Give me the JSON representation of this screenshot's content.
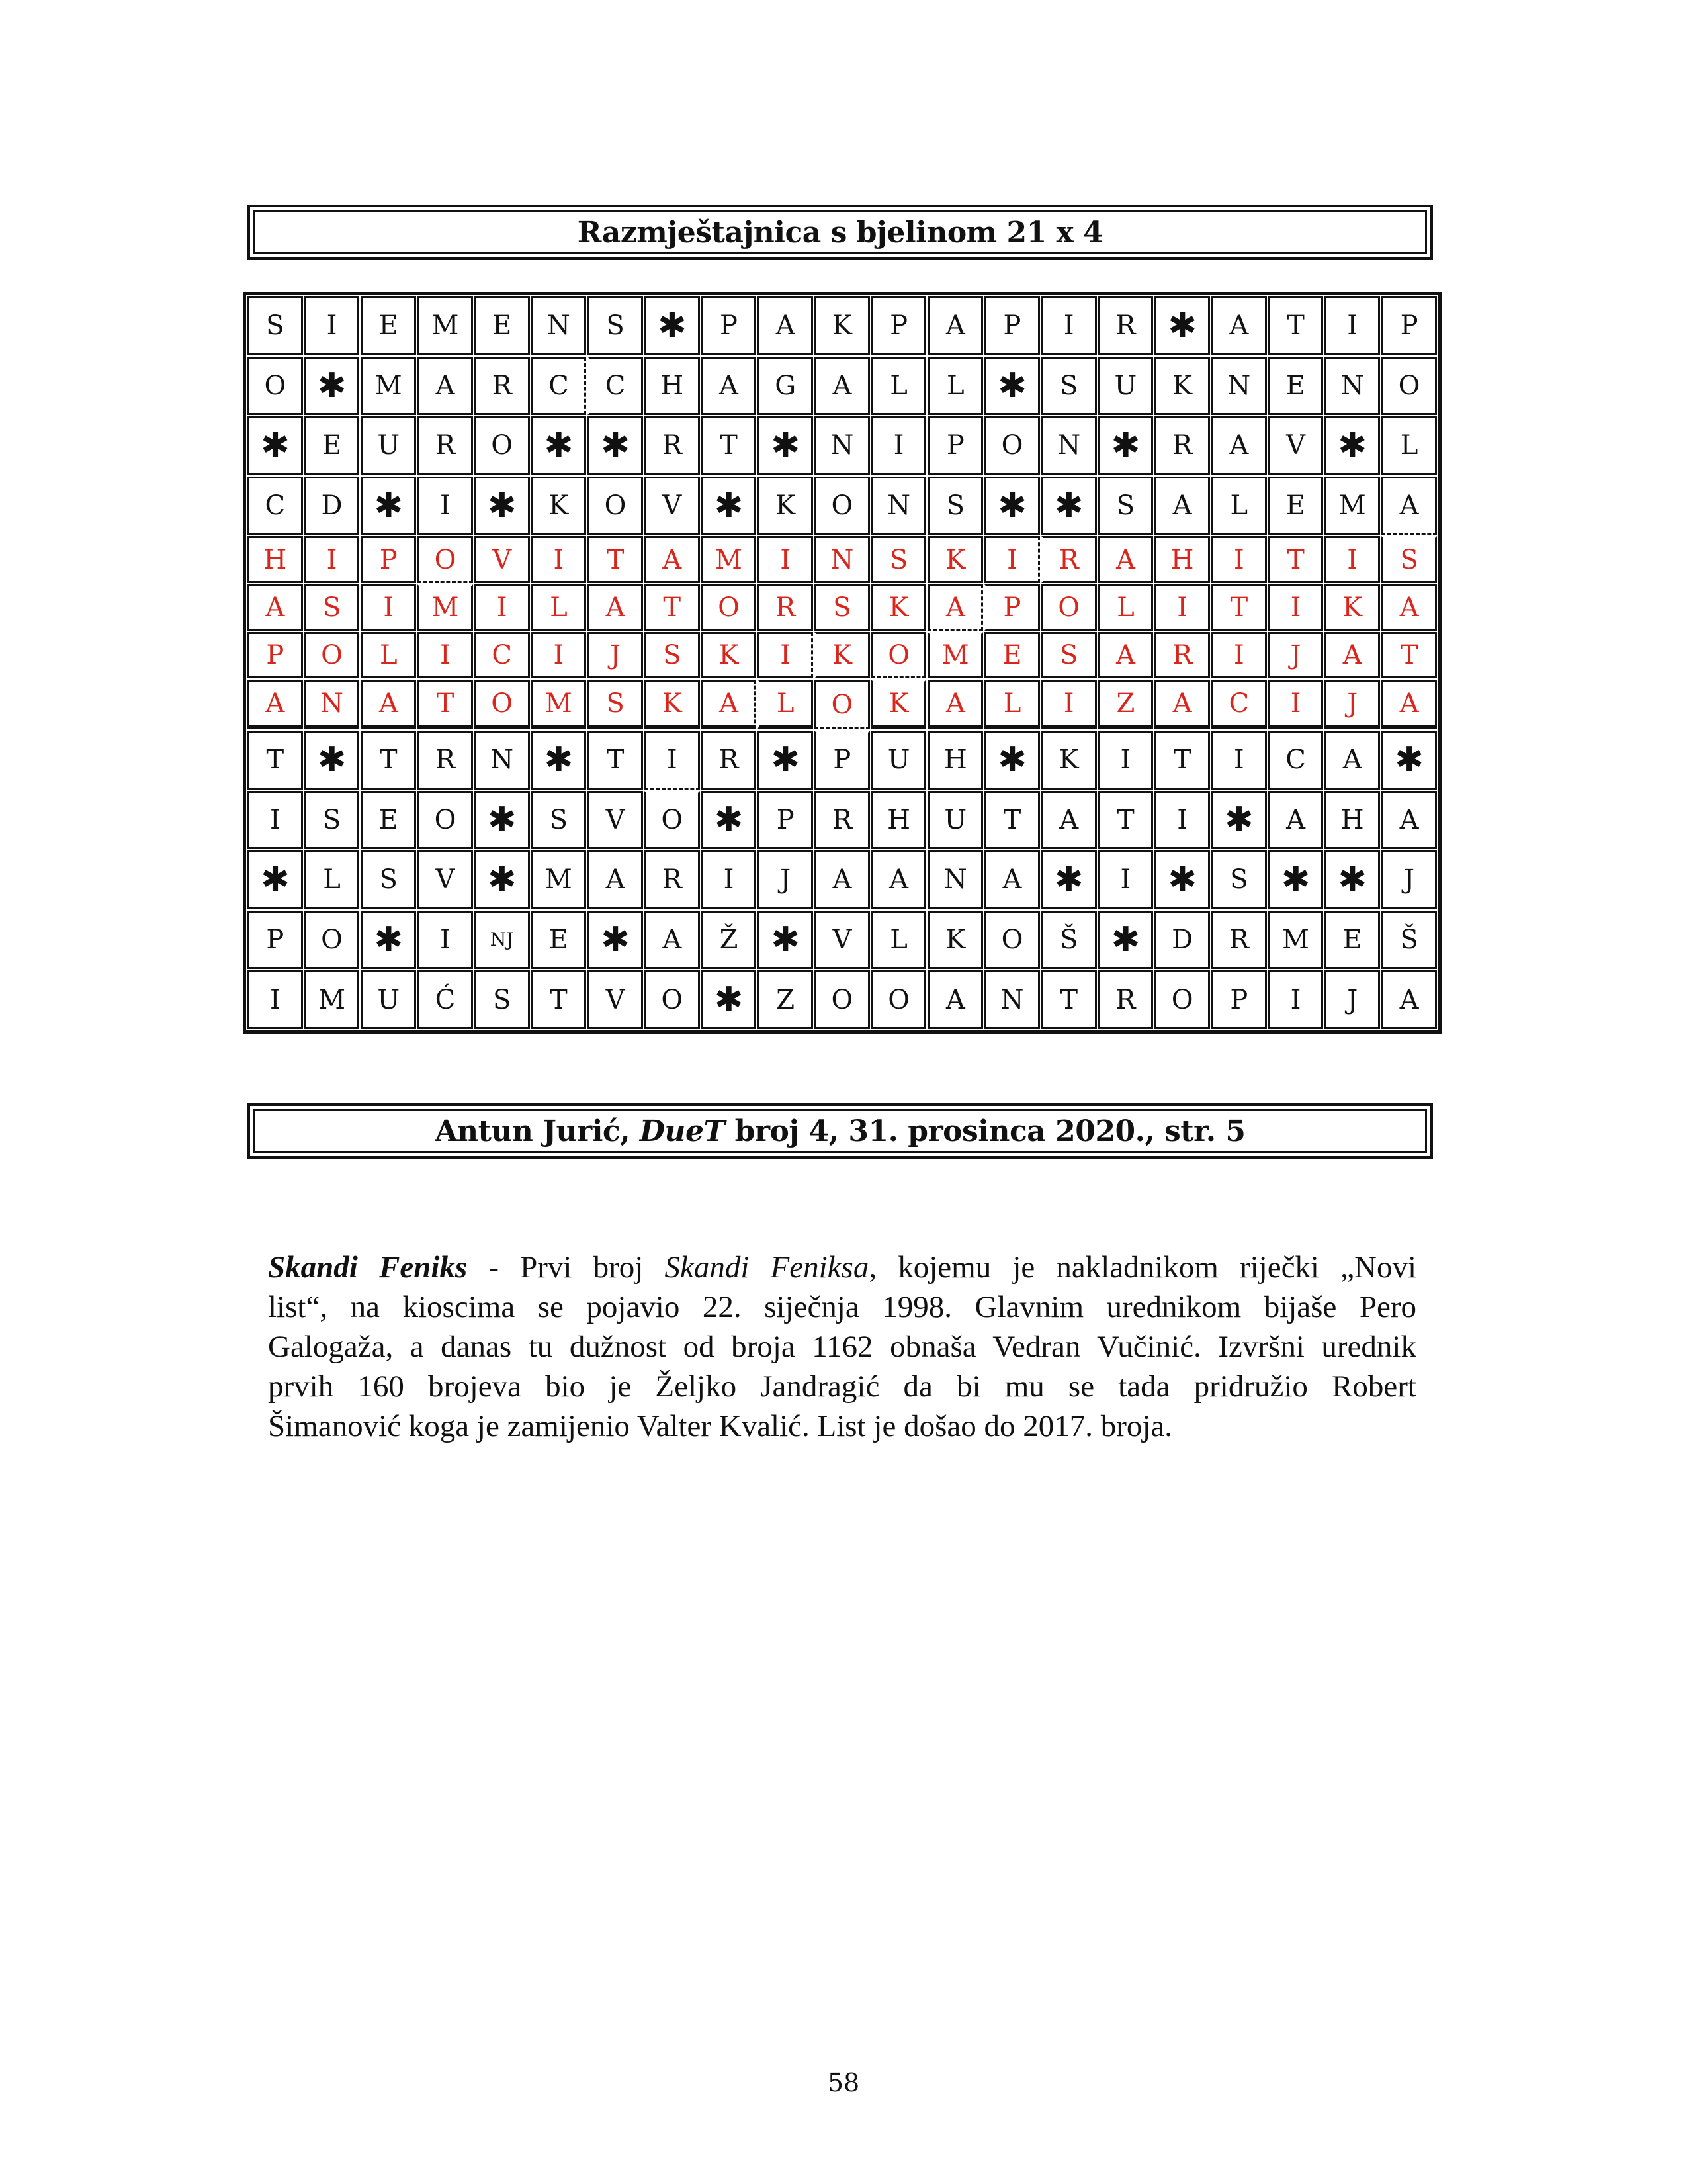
{
  "title": "Razmještajnica s bjelinom 21 x 4",
  "colors": {
    "text": "#111111",
    "solution_red": "#d9261c"
  },
  "grid": {
    "columns": 21,
    "rows": [
      [
        "S",
        "I",
        "E",
        "M",
        "E",
        "N",
        "S",
        "*",
        "P",
        "A",
        "K",
        "P",
        "A",
        "P",
        "I",
        "R",
        "*",
        "A",
        "T",
        "I",
        "P"
      ],
      [
        "O",
        "*",
        "M",
        "A",
        "R",
        "C",
        "C",
        "H",
        "A",
        "G",
        "A",
        "L",
        "L",
        "*",
        "S",
        "U",
        "K",
        "N",
        "E",
        "N",
        "O"
      ],
      [
        "*",
        "E",
        "U",
        "R",
        "O",
        "*",
        "*",
        "R",
        "T",
        "*",
        "N",
        "I",
        "P",
        "O",
        "N",
        "*",
        "R",
        "A",
        "V",
        "*",
        "L"
      ],
      [
        "C",
        "D",
        "*",
        "I",
        "*",
        "K",
        "O",
        "V",
        "*",
        "K",
        "O",
        "N",
        "S",
        "*",
        "*",
        "S",
        "A",
        "L",
        "E",
        "M",
        "A"
      ],
      [
        "H",
        "I",
        "P",
        "O",
        "V",
        "I",
        "T",
        "A",
        "M",
        "I",
        "N",
        "S",
        "K",
        "I",
        "R",
        "A",
        "H",
        "I",
        "T",
        "I",
        "S"
      ],
      [
        "A",
        "S",
        "I",
        "M",
        "I",
        "L",
        "A",
        "T",
        "O",
        "R",
        "S",
        "K",
        "A",
        "P",
        "O",
        "L",
        "I",
        "T",
        "I",
        "K",
        "A"
      ],
      [
        "P",
        "O",
        "L",
        "I",
        "C",
        "I",
        "J",
        "S",
        "K",
        "I",
        "K",
        "O",
        "M",
        "E",
        "S",
        "A",
        "R",
        "I",
        "J",
        "A",
        "T"
      ],
      [
        "A",
        "N",
        "A",
        "T",
        "O",
        "M",
        "S",
        "K",
        "A",
        "L",
        "O",
        "K",
        "A",
        "L",
        "I",
        "Z",
        "A",
        "C",
        "I",
        "J",
        "A"
      ],
      [
        "T",
        "*",
        "T",
        "R",
        "N",
        "*",
        "T",
        "I",
        "R",
        "*",
        "P",
        "U",
        "H",
        "*",
        "K",
        "I",
        "T",
        "I",
        "C",
        "A",
        "*"
      ],
      [
        "I",
        "S",
        "E",
        "O",
        "*",
        "S",
        "V",
        "O",
        "*",
        "P",
        "R",
        "H",
        "U",
        "T",
        "A",
        "T",
        "I",
        "*",
        "A",
        "H",
        "A"
      ],
      [
        "*",
        "L",
        "S",
        "V",
        "*",
        "M",
        "A",
        "R",
        "I",
        "J",
        "A",
        "A",
        "N",
        "A",
        "*",
        "I",
        "*",
        "S",
        "*",
        "*",
        "J"
      ],
      [
        "P",
        "O",
        "*",
        "I",
        "NJ",
        "E",
        "*",
        "A",
        "Ž",
        "*",
        "V",
        "L",
        "K",
        "O",
        "Š",
        "*",
        "D",
        "R",
        "M",
        "E",
        "Š"
      ],
      [
        "I",
        "M",
        "U",
        "Ć",
        "S",
        "T",
        "V",
        "O",
        "*",
        "Z",
        "O",
        "O",
        "A",
        "N",
        "T",
        "R",
        "O",
        "P",
        "I",
        "J",
        "A"
      ]
    ],
    "highlighted_rows": [
      4,
      5,
      6,
      7
    ],
    "word_breaks": [
      {
        "row": 1,
        "col": 5,
        "side": "right"
      },
      {
        "row": 3,
        "col": 20,
        "side": "bottom"
      },
      {
        "row": 4,
        "col": 3,
        "side": "bottom"
      },
      {
        "row": 4,
        "col": 13,
        "side": "right"
      },
      {
        "row": 5,
        "col": 12,
        "side": "right"
      },
      {
        "row": 5,
        "col": 12,
        "side": "bottom"
      },
      {
        "row": 6,
        "col": 9,
        "side": "right"
      },
      {
        "row": 6,
        "col": 11,
        "side": "bottom"
      },
      {
        "row": 7,
        "col": 8,
        "side": "right"
      },
      {
        "row": 7,
        "col": 10,
        "side": "bottom"
      },
      {
        "row": 8,
        "col": 7,
        "side": "bottom"
      }
    ],
    "blank_symbol": "*",
    "blank_icon": "asterisk-icon"
  },
  "citation": {
    "author": "Antun Jurić, ",
    "publication": "DueT",
    "details": " broj 4, 31. prosinca 2020., str. 5"
  },
  "paragraph": {
    "lines": [
      [
        {
          "text": "Skandi Feniks",
          "style": "bi"
        },
        {
          "text": " - Prvi broj ",
          "style": ""
        },
        {
          "text": "Skandi Feniksa",
          "style": "i"
        },
        {
          "text": ", kojemu je nakladnikom riječki „Novi",
          "style": ""
        }
      ],
      [
        {
          "text": "list“, na kioscima se pojavio 22. siječnja 1998. Glavnim urednikom bijaše Pero",
          "style": ""
        }
      ],
      [
        {
          "text": "Galogaža, a danas tu dužnost od broja 1162  obnaša Vedran Vučinić. Izvršni urednik",
          "style": ""
        }
      ],
      [
        {
          "text": "prvih 160 brojeva bio je Željko Jandragić da bi mu se tada pridružio Robert",
          "style": ""
        }
      ],
      [
        {
          "text": "Šimanović koga je zamijenio Valter Kvalić. List je došao do 2017. broja.",
          "style": ""
        }
      ]
    ]
  },
  "page_number": "58"
}
